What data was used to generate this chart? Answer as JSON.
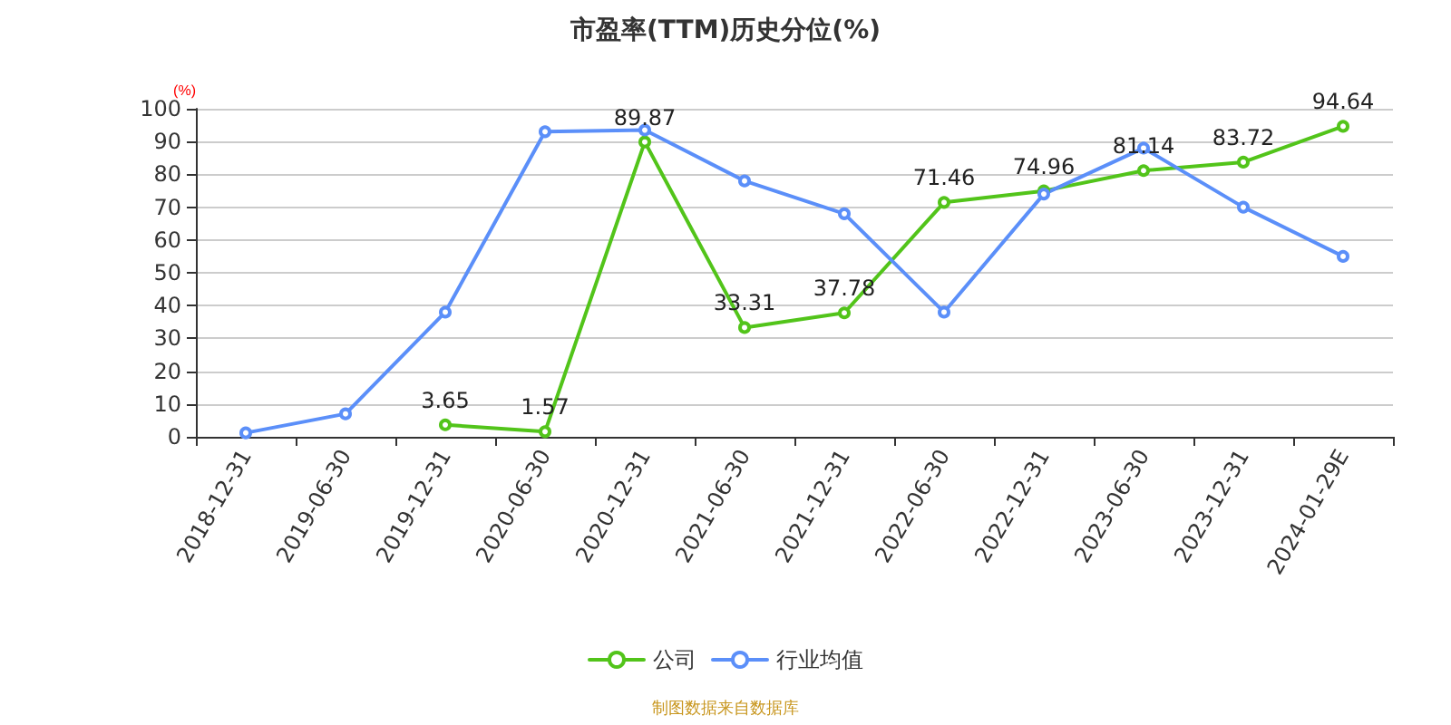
{
  "chart_data": {
    "type": "line",
    "title": "市盈率(TTM)历史分位(%)",
    "ylabel": "(%)",
    "categories": [
      "2018-12-31",
      "2019-06-30",
      "2019-12-31",
      "2020-06-30",
      "2020-12-31",
      "2021-06-30",
      "2021-12-31",
      "2022-06-30",
      "2022-12-31",
      "2023-06-30",
      "2023-12-31",
      "2024-01-29E"
    ],
    "series": [
      {
        "name": "公司",
        "color": "#52c41a",
        "values": [
          null,
          null,
          3.65,
          1.57,
          89.87,
          33.31,
          37.78,
          71.46,
          74.96,
          81.14,
          83.72,
          94.64
        ],
        "value_labels": [
          null,
          null,
          "3.65",
          "1.57",
          "89.87",
          "33.31",
          "37.78",
          "71.46",
          "74.96",
          "81.14",
          "83.72",
          "94.64"
        ]
      },
      {
        "name": "行业均值",
        "color": "#5b8ff9",
        "values": [
          1.2,
          7,
          38,
          93,
          93.5,
          78,
          68,
          38,
          74,
          88,
          70,
          55
        ]
      }
    ],
    "ylim": [
      0,
      100
    ],
    "yticks": [
      0,
      10,
      20,
      30,
      40,
      50,
      60,
      70,
      80,
      90,
      100
    ],
    "grid": "y",
    "legend": "bottom",
    "marker": "circle",
    "line_style": "solid",
    "annotations": [
      "制图数据来自数据库"
    ]
  }
}
